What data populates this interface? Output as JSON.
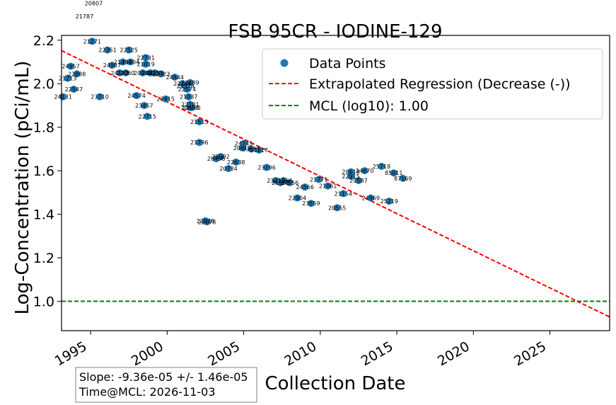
{
  "chart_data": {
    "type": "scatter",
    "title": "FSB 95CR - IODINE-129",
    "xlabel": "Collection Date",
    "ylabel": "Log-Concentration (pCi/mL)",
    "xlim": [
      1993.1,
      2028.9
    ],
    "ylim": [
      0.865,
      2.222
    ],
    "xticks": [
      1995,
      2000,
      2005,
      2010,
      2015,
      2020,
      2025
    ],
    "xtick_labels": [
      "1995",
      "2000",
      "2005",
      "2010",
      "2015",
      "2020",
      "2025"
    ],
    "yticks": [
      1.0,
      1.2,
      1.4,
      1.6,
      1.8,
      2.0,
      2.2
    ],
    "ytick_labels": [
      "1.0",
      "1.2",
      "1.4",
      "1.6",
      "1.8",
      "2.0",
      "2.2"
    ],
    "legend": {
      "placement": "top-right",
      "entries": [
        "Data Points",
        "Extrapolated Regression (Decrease (-))",
        "MCL (log10): 1.00"
      ]
    },
    "colors": {
      "points": "#1f77b4",
      "regression": "#ff0000",
      "mcl": "#008000"
    },
    "mcl_value": 1.0,
    "regression": {
      "x": [
        1993.1,
        2028.9
      ],
      "y": [
        2.152,
        0.928
      ]
    },
    "points": [
      {
        "x": 1993.2,
        "y": 1.94,
        "label": "24131"
      },
      {
        "x": 1993.5,
        "y": 2.025,
        "label": "21213"
      },
      {
        "x": 1993.7,
        "y": 2.08,
        "label": "24957"
      },
      {
        "x": 1993.9,
        "y": 1.975,
        "label": "22547"
      },
      {
        "x": 1994.1,
        "y": 2.045,
        "label": "22888"
      },
      {
        "x": 1995.1,
        "y": 2.195,
        "label": "21271"
      },
      {
        "x": 1995.6,
        "y": 1.94,
        "label": "23710"
      },
      {
        "x": 1996.1,
        "y": 2.155,
        "label": "22351"
      },
      {
        "x": 1996.4,
        "y": 2.085,
        "label": "24987"
      },
      {
        "x": 1996.9,
        "y": 2.05,
        "label": "24182"
      },
      {
        "x": 1997.1,
        "y": 2.1,
        "label": "21404"
      },
      {
        "x": 1997.3,
        "y": 2.05,
        "label": "22060"
      },
      {
        "x": 1997.5,
        "y": 2.155,
        "label": "22525"
      },
      {
        "x": 1997.6,
        "y": 2.1,
        "label": "21004"
      },
      {
        "x": 1998.0,
        "y": 1.945,
        "label": "24574"
      },
      {
        "x": 1998.4,
        "y": 2.05,
        "label": "20088"
      },
      {
        "x": 1998.5,
        "y": 1.9,
        "label": "23457"
      },
      {
        "x": 1998.6,
        "y": 2.12,
        "label": "22731"
      },
      {
        "x": 1998.6,
        "y": 2.09,
        "label": "21019"
      },
      {
        "x": 1998.7,
        "y": 1.85,
        "label": "22715"
      },
      {
        "x": 1998.9,
        "y": 2.05,
        "label": "24025"
      },
      {
        "x": 1999.2,
        "y": 2.05,
        "label": "24135"
      },
      {
        "x": 1999.6,
        "y": 2.045,
        "label": "22323"
      },
      {
        "x": 1999.9,
        "y": 1.93,
        "label": "22415"
      },
      {
        "x": 2000.5,
        "y": 2.03,
        "label": "24844"
      },
      {
        "x": 2001.0,
        "y": 2.0,
        "label": "22148"
      },
      {
        "x": 2001.2,
        "y": 1.99,
        "label": "21574"
      },
      {
        "x": 2001.3,
        "y": 1.975,
        "label": "22574"
      },
      {
        "x": 2001.4,
        "y": 1.94,
        "label": "21037"
      },
      {
        "x": 2001.5,
        "y": 2.005,
        "label": "22489"
      },
      {
        "x": 2001.5,
        "y": 1.905,
        "label": "22281"
      },
      {
        "x": 2001.5,
        "y": 1.89,
        "label": "22450"
      },
      {
        "x": 2001.6,
        "y": 1.89,
        "label": "22630"
      },
      {
        "x": 2002.1,
        "y": 1.825,
        "label": "21513"
      },
      {
        "x": 2002.1,
        "y": 1.73,
        "label": "21796"
      },
      {
        "x": 2002.5,
        "y": 1.37,
        "label": "22078"
      },
      {
        "x": 2002.6,
        "y": 1.365,
        "label": "22078"
      },
      {
        "x": 2003.2,
        "y": 1.655,
        "label": "20496"
      },
      {
        "x": 2003.5,
        "y": 1.665,
        "label": "23992"
      },
      {
        "x": 2004.0,
        "y": 1.61,
        "label": "20734"
      },
      {
        "x": 2004.5,
        "y": 1.64,
        "label": "22638"
      },
      {
        "x": 2004.9,
        "y": 1.705,
        "label": "20612"
      },
      {
        "x": 2005.0,
        "y": 1.725,
        "label": "24745"
      },
      {
        "x": 2005.5,
        "y": 1.7,
        "label": "23681"
      },
      {
        "x": 2006.0,
        "y": 1.695,
        "label": "21217"
      },
      {
        "x": 2006.5,
        "y": 1.615,
        "label": "23196"
      },
      {
        "x": 2007.1,
        "y": 1.555,
        "label": "23012"
      },
      {
        "x": 2007.4,
        "y": 1.545,
        "label": "21865"
      },
      {
        "x": 2007.6,
        "y": 1.555,
        "label": "21966"
      },
      {
        "x": 2008.0,
        "y": 1.545,
        "label": "24556"
      },
      {
        "x": 2008.5,
        "y": 1.475,
        "label": "22004"
      },
      {
        "x": 2009.0,
        "y": 1.525,
        "label": "24566"
      },
      {
        "x": 2009.4,
        "y": 1.45,
        "label": "23559"
      },
      {
        "x": 2009.9,
        "y": 1.56,
        "label": "21771"
      },
      {
        "x": 2010.5,
        "y": 1.53,
        "label": "21061"
      },
      {
        "x": 2011.1,
        "y": 1.43,
        "label": "20555"
      },
      {
        "x": 2011.5,
        "y": 1.495,
        "label": "21154"
      },
      {
        "x": 2012.0,
        "y": 1.595,
        "label": "20618"
      },
      {
        "x": 2012.0,
        "y": 1.575,
        "label": "22915"
      },
      {
        "x": 2012.5,
        "y": 1.555,
        "label": "20587"
      },
      {
        "x": 2012.9,
        "y": 1.6,
        "label": "24670"
      },
      {
        "x": 2013.3,
        "y": 1.475,
        "label": "24969"
      },
      {
        "x": 2014.0,
        "y": 1.62,
        "label": "25718"
      },
      {
        "x": 2014.5,
        "y": 1.46,
        "label": "25219"
      },
      {
        "x": 2014.8,
        "y": 1.59,
        "label": "85011"
      },
      {
        "x": 2015.4,
        "y": 1.565,
        "label": "87169"
      }
    ],
    "outside_labels": [
      {
        "x": 1995.2,
        "y": 2.37,
        "label": "20807"
      },
      {
        "x": 1994.6,
        "y": 2.31,
        "label": "21787"
      }
    ]
  },
  "info_box": {
    "slope_text": "Slope: -9.36e-05 +/- 1.46e-05",
    "mcl_text": "Time@MCL: 2026-11-03"
  }
}
